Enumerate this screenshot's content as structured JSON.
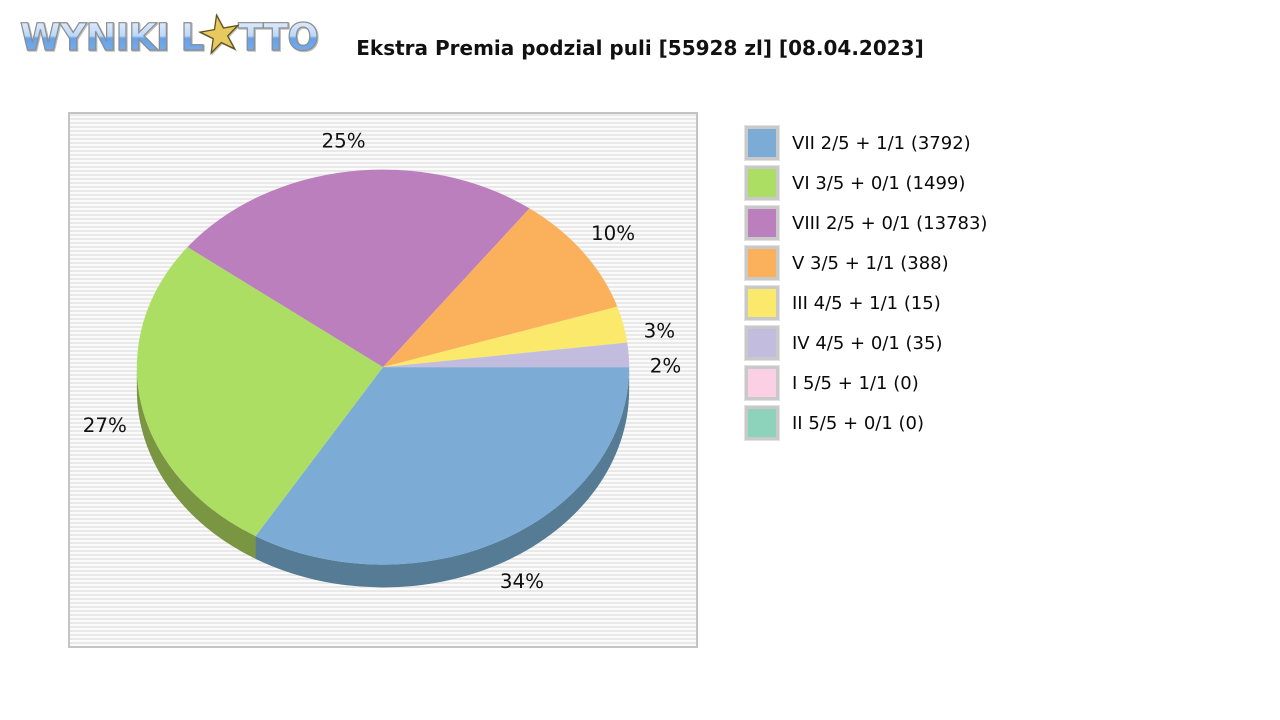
{
  "logo": {
    "prefix": "WYNIKI L",
    "suffix": "TTO",
    "star_glyph": "★"
  },
  "header": {
    "title": "Ekstra Premia podzial puli [55928 zl] [08.04.2023]"
  },
  "chart_data": {
    "type": "pie",
    "title": "Ekstra Premia podzial puli [55928 zl] [08.04.2023]",
    "pool_label": "55928 zl",
    "date_label": "08.04.2023",
    "style": "3d-ellipse",
    "direction": "clockwise",
    "start_angle_deg": 0,
    "legend_position": "right",
    "slices": [
      {
        "label": "VII 2/5 + 1/1",
        "winners": 3792,
        "pct": 34,
        "pct_label": "34%",
        "color": "#7cacd6",
        "depth_color": "#567b94",
        "legend_label": "VII 2/5 + 1/1 (3792)"
      },
      {
        "label": "VI 3/5 + 0/1",
        "winners": 1499,
        "pct": 27,
        "pct_label": "27%",
        "color": "#acde63",
        "depth_color": "#7a9642",
        "legend_label": "VI 3/5 + 0/1 (1499)"
      },
      {
        "label": "VIII 2/5 + 0/1",
        "winners": 13783,
        "pct": 25,
        "pct_label": "25%",
        "color": "#bc7fbe",
        "depth_color": "#8a5c8c",
        "legend_label": "VIII 2/5 + 0/1 (13783)"
      },
      {
        "label": "V 3/5 + 1/1",
        "winners": 388,
        "pct": 10,
        "pct_label": "10%",
        "color": "#fbb15c",
        "depth_color": "#b87f3a",
        "legend_label": "V 3/5 + 1/1 (388)"
      },
      {
        "label": "III 4/5 + 1/1",
        "winners": 15,
        "pct": 3,
        "pct_label": "3%",
        "color": "#fae96b",
        "depth_color": "#b3a647",
        "legend_label": "III 4/5 + 1/1 (15)"
      },
      {
        "label": "IV 4/5 + 0/1",
        "winners": 35,
        "pct": 2,
        "pct_label": "2%",
        "color": "#c2bcdf",
        "depth_color": "#8d87a6",
        "legend_label": "IV 4/5 + 0/1 (35)"
      },
      {
        "label": "I 5/5 + 1/1",
        "winners": 0,
        "pct": 0,
        "pct_label": "",
        "color": "#fbd0e4",
        "depth_color": "#b897a6",
        "legend_label": "I 5/5 + 1/1 (0)"
      },
      {
        "label": "II 5/5 + 0/1",
        "winners": 0,
        "pct": 0,
        "pct_label": "",
        "color": "#8dd3bb",
        "depth_color": "#639a87",
        "legend_label": "II 5/5 + 0/1 (0)"
      }
    ]
  }
}
